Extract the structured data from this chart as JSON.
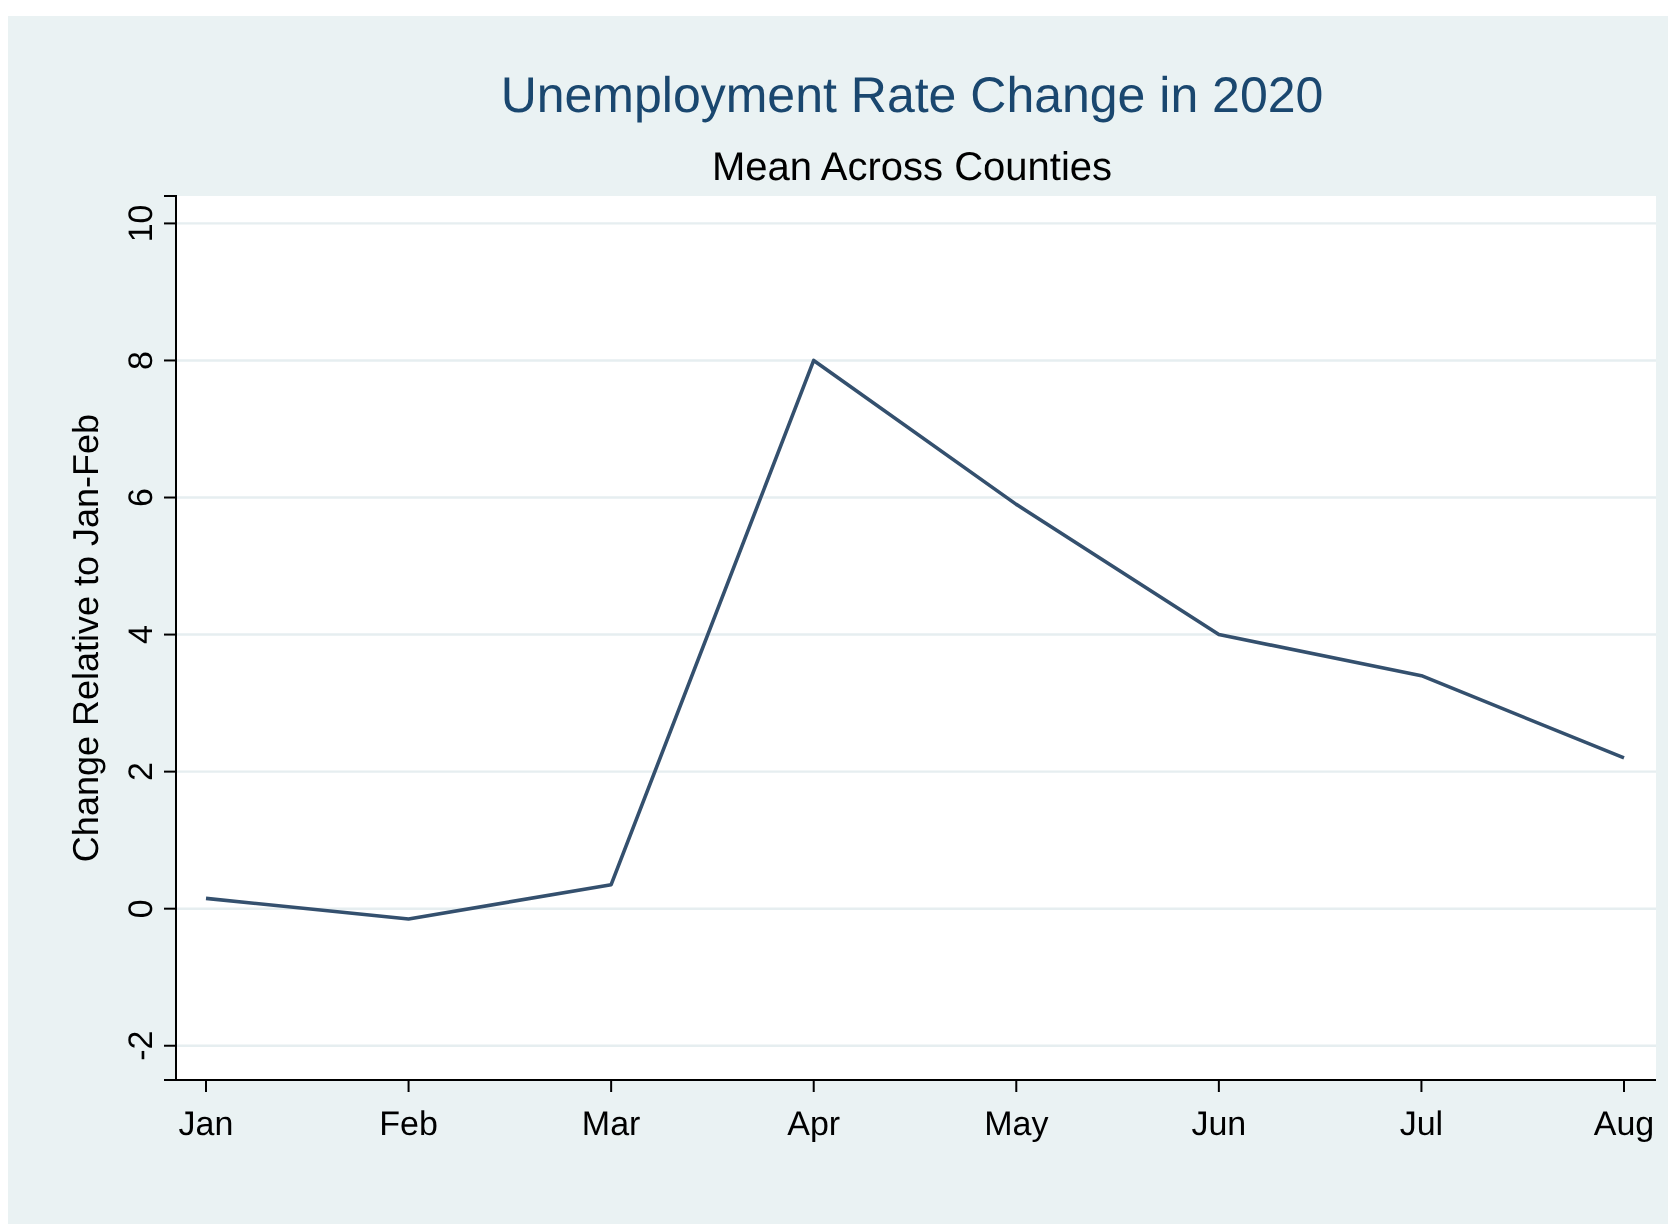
{
  "chart_data": {
    "type": "line",
    "title": "Unemployment Rate Change in 2020",
    "subtitle": "Mean Across Counties",
    "ylabel": "Change Relative to Jan-Feb",
    "categories": [
      "Jan",
      "Feb",
      "Mar",
      "Apr",
      "May",
      "Jun",
      "Jul",
      "Aug"
    ],
    "series": [
      {
        "color": "#34506e",
        "values": [
          0.15,
          -0.15,
          0.35,
          8.0,
          5.9,
          4.0,
          3.4,
          2.2
        ]
      }
    ],
    "ylim": [
      -2.5,
      10.4
    ],
    "yticks": [
      -2,
      0,
      2,
      4,
      6,
      8,
      10
    ],
    "grid": "y",
    "marker": "none",
    "line_style": "solid"
  }
}
